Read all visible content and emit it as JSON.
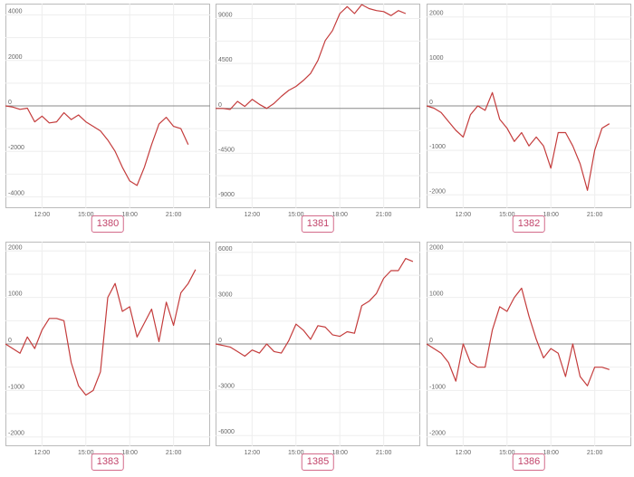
{
  "chart_data": [
    {
      "type": "line",
      "label": "1380",
      "color": "#c43c3c",
      "ylim": [
        -4500,
        4500
      ],
      "yticks": [
        4000,
        2000,
        0,
        -2000,
        -4000
      ],
      "yticklabels": [
        "4000",
        "2000",
        "0",
        "-2000",
        "-4000"
      ],
      "xticks": [
        12,
        15,
        18,
        21
      ],
      "xticklabels": [
        "12:00",
        "15:00",
        "18:00",
        "21:00"
      ],
      "xlim": [
        9.5,
        23.5
      ],
      "x": [
        9.5,
        10.0,
        10.5,
        11.0,
        11.5,
        12.0,
        12.5,
        13.0,
        13.5,
        14.0,
        14.5,
        15.0,
        15.5,
        16.0,
        16.5,
        17.0,
        17.5,
        18.0,
        18.5,
        19.0,
        19.5,
        20.0,
        20.5,
        21.0,
        21.5,
        22.0
      ],
      "values": [
        0,
        -50,
        -150,
        -100,
        -700,
        -450,
        -750,
        -700,
        -300,
        -600,
        -400,
        -700,
        -900,
        -1100,
        -1500,
        -2000,
        -2700,
        -3300,
        -3500,
        -2700,
        -1700,
        -800,
        -500,
        -900,
        -1000,
        -1700
      ]
    },
    {
      "type": "line",
      "label": "1381",
      "color": "#c43c3c",
      "ylim": [
        -10000,
        10500
      ],
      "yticks": [
        9000,
        4500,
        0,
        -4500,
        -9000
      ],
      "yticklabels": [
        "9000",
        "4500",
        "0",
        "-4500",
        "-9000"
      ],
      "xticks": [
        12,
        15,
        18,
        21
      ],
      "xticklabels": [
        "12:00",
        "15:00",
        "18:00",
        "21:00"
      ],
      "xlim": [
        9.5,
        23.5
      ],
      "x": [
        9.5,
        10.0,
        10.5,
        11.0,
        11.5,
        12.0,
        12.5,
        13.0,
        13.5,
        14.0,
        14.5,
        15.0,
        15.5,
        16.0,
        16.5,
        17.0,
        17.5,
        18.0,
        18.5,
        19.0,
        19.5,
        20.0,
        20.5,
        21.0,
        21.5,
        22.0,
        22.5
      ],
      "values": [
        0,
        0,
        -100,
        700,
        200,
        900,
        400,
        0,
        500,
        1200,
        1800,
        2200,
        2800,
        3500,
        4800,
        6800,
        7800,
        9500,
        10200,
        9500,
        10400,
        10000,
        9800,
        9700,
        9300,
        9800,
        9500
      ]
    },
    {
      "type": "line",
      "label": "1382",
      "color": "#c43c3c",
      "ylim": [
        -2300,
        2300
      ],
      "yticks": [
        2000,
        1000,
        0,
        -1000,
        -2000
      ],
      "yticklabels": [
        "2000",
        "1000",
        "0",
        "-1000",
        "-2000"
      ],
      "xticks": [
        12,
        15,
        18,
        21
      ],
      "xticklabels": [
        "12:00",
        "15:00",
        "18:00",
        "21:00"
      ],
      "xlim": [
        9.5,
        23.5
      ],
      "x": [
        9.5,
        10.0,
        10.5,
        11.0,
        11.5,
        12.0,
        12.5,
        13.0,
        13.5,
        14.0,
        14.5,
        15.0,
        15.5,
        16.0,
        16.5,
        17.0,
        17.5,
        18.0,
        18.5,
        19.0,
        19.5,
        20.0,
        20.5,
        21.0,
        21.5,
        22.0
      ],
      "values": [
        0,
        -50,
        -150,
        -350,
        -550,
        -700,
        -200,
        0,
        -100,
        300,
        -300,
        -500,
        -800,
        -600,
        -900,
        -700,
        -900,
        -1400,
        -600,
        -600,
        -900,
        -1300,
        -1900,
        -1000,
        -500,
        -400
      ]
    },
    {
      "type": "line",
      "label": "1383",
      "color": "#c43c3c",
      "ylim": [
        -2200,
        2200
      ],
      "yticks": [
        2000,
        1000,
        0,
        -1000,
        -2000
      ],
      "yticklabels": [
        "2000",
        "1000",
        "0",
        "-1000",
        "-2000"
      ],
      "xticks": [
        12,
        15,
        18,
        21
      ],
      "xticklabels": [
        "12:00",
        "15:00",
        "18:00",
        "21:00"
      ],
      "xlim": [
        9.5,
        23.5
      ],
      "x": [
        9.5,
        10.0,
        10.5,
        11.0,
        11.5,
        12.0,
        12.5,
        13.0,
        13.5,
        14.0,
        14.5,
        15.0,
        15.5,
        16.0,
        16.5,
        17.0,
        17.5,
        18.0,
        18.5,
        19.0,
        19.5,
        20.0,
        20.5,
        21.0,
        21.5,
        22.0,
        22.5
      ],
      "values": [
        0,
        -100,
        -200,
        150,
        -100,
        300,
        550,
        550,
        500,
        -400,
        -900,
        -1100,
        -1000,
        -600,
        1000,
        1300,
        700,
        800,
        150,
        450,
        750,
        50,
        900,
        400,
        1100,
        1300,
        1600
      ]
    },
    {
      "type": "line",
      "label": "1385",
      "color": "#c43c3c",
      "ylim": [
        -6700,
        6700
      ],
      "yticks": [
        6000,
        3000,
        0,
        -3000,
        -6000
      ],
      "yticklabels": [
        "6000",
        "3000",
        "0",
        "-3000",
        "-6000"
      ],
      "xticks": [
        12,
        15,
        18,
        21
      ],
      "xticklabels": [
        "12:00",
        "15:00",
        "18:00",
        "21:00"
      ],
      "xlim": [
        9.5,
        23.5
      ],
      "x": [
        9.5,
        10.0,
        10.5,
        11.0,
        11.5,
        12.0,
        12.5,
        13.0,
        13.5,
        14.0,
        14.5,
        15.0,
        15.5,
        16.0,
        16.5,
        17.0,
        17.5,
        18.0,
        18.5,
        19.0,
        19.5,
        20.0,
        20.5,
        21.0,
        21.5,
        22.0,
        22.5,
        23.0
      ],
      "values": [
        0,
        -100,
        -200,
        -500,
        -800,
        -400,
        -600,
        0,
        -500,
        -600,
        200,
        1300,
        900,
        300,
        1200,
        1100,
        600,
        500,
        800,
        700,
        2500,
        2800,
        3300,
        4300,
        4800,
        4800,
        5600,
        5400
      ]
    },
    {
      "type": "line",
      "label": "1386",
      "color": "#c43c3c",
      "ylim": [
        -2200,
        2200
      ],
      "yticks": [
        2000,
        1000,
        0,
        -1000,
        -2000
      ],
      "yticklabels": [
        "2000",
        "1000",
        "0",
        "-1000",
        "-2000"
      ],
      "xticks": [
        12,
        15,
        18,
        21
      ],
      "xticklabels": [
        "12:00",
        "15:00",
        "18:00",
        "21:00"
      ],
      "xlim": [
        9.5,
        23.5
      ],
      "x": [
        9.5,
        10.0,
        10.5,
        11.0,
        11.5,
        12.0,
        12.5,
        13.0,
        13.5,
        14.0,
        14.5,
        15.0,
        15.5,
        16.0,
        16.5,
        17.0,
        17.5,
        18.0,
        18.5,
        19.0,
        19.5,
        20.0,
        20.5,
        21.0,
        21.5,
        22.0
      ],
      "values": [
        0,
        -100,
        -200,
        -400,
        -800,
        0,
        -400,
        -500,
        -500,
        300,
        800,
        700,
        1000,
        1200,
        600,
        100,
        -300,
        -100,
        -200,
        -700,
        0,
        -700,
        -900,
        -500,
        -500,
        -550
      ]
    }
  ]
}
